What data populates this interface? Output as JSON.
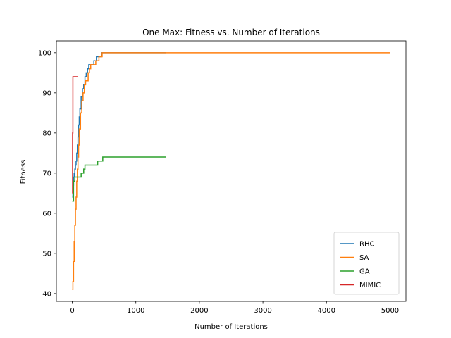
{
  "chart_data": {
    "type": "line",
    "title": "One Max: Fitness vs. Number of Iterations",
    "xlabel": "Number of Iterations",
    "ylabel": "Fitness",
    "xlim": [
      -250,
      5250
    ],
    "ylim": [
      38.05,
      102.95
    ],
    "xticks": [
      0,
      1000,
      2000,
      3000,
      4000,
      5000
    ],
    "yticks": [
      40,
      50,
      60,
      70,
      80,
      90,
      100
    ],
    "grid": false,
    "legend_position": "lower-right",
    "series": [
      {
        "name": "RHC",
        "color": "#1f77b4",
        "x": [
          0,
          10,
          20,
          30,
          40,
          50,
          60,
          70,
          80,
          90,
          100,
          110,
          120,
          140,
          160,
          180,
          200,
          220,
          240,
          260,
          300,
          340,
          380,
          420,
          460,
          1480
        ],
        "y": [
          64,
          67,
          69,
          70,
          71,
          72,
          73,
          75,
          77,
          79,
          82,
          84,
          86,
          89,
          91,
          92,
          94,
          95,
          96,
          97,
          97,
          98,
          99,
          99,
          100,
          100
        ]
      },
      {
        "name": "SA",
        "color": "#ff7f0e",
        "x": [
          0,
          10,
          20,
          30,
          40,
          50,
          60,
          70,
          80,
          90,
          100,
          110,
          130,
          150,
          170,
          190,
          210,
          230,
          250,
          270,
          290,
          330,
          370,
          420,
          470,
          5000
        ],
        "y": [
          41,
          43,
          48,
          53,
          57,
          61,
          64,
          68,
          71,
          74,
          77,
          81,
          85,
          88,
          90,
          92,
          93,
          93,
          95,
          96,
          97,
          97,
          98,
          99,
          100,
          100
        ]
      },
      {
        "name": "GA",
        "color": "#2ca02c",
        "x": [
          0,
          20,
          40,
          60,
          80,
          100,
          120,
          140,
          160,
          180,
          200,
          240,
          280,
          320,
          360,
          400,
          440,
          480,
          1480
        ],
        "y": [
          63,
          68,
          69,
          69,
          69,
          69,
          69,
          70,
          70,
          71,
          72,
          72,
          72,
          72,
          72,
          73,
          73,
          74,
          74
        ]
      },
      {
        "name": "MIMIC",
        "color": "#d62728",
        "x": [
          0,
          5,
          10,
          15,
          20,
          30,
          40,
          50,
          60,
          70,
          80,
          90
        ],
        "y": [
          65,
          80,
          94,
          94,
          94,
          94,
          94,
          94,
          94,
          94,
          94,
          94
        ]
      }
    ]
  }
}
